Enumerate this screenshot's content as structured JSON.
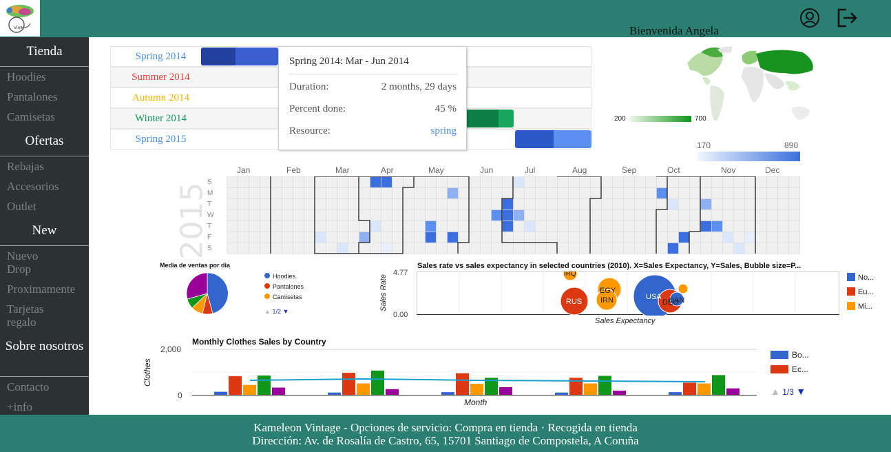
{
  "header": {
    "welcome": "Bienvenida Angela",
    "icons": [
      "user-icon",
      "logout-icon"
    ]
  },
  "sidebar": {
    "sections": [
      {
        "title": "Tienda",
        "items": [
          "Hoodies",
          "Pantalones",
          "Camisetas"
        ]
      },
      {
        "title": "Ofertas",
        "items": [
          "Rebajas",
          "Accesorios",
          "Outlet"
        ]
      },
      {
        "title": "New",
        "items": [
          "Nuevo Drop",
          "Proximamente",
          "Tarjetas regalo"
        ]
      },
      {
        "title": "Sobre nosotros",
        "items": [
          "Contacto",
          "+info"
        ]
      }
    ]
  },
  "timeline": {
    "rows": [
      {
        "label": "Spring 2014",
        "color": "#4285f4",
        "bar_color": "#3f5fd6",
        "bar_dark": "#2443a8",
        "percent_done": 45
      },
      {
        "label": "Summer 2014",
        "color": "#db4437",
        "bar_color": "#db4437",
        "bar_dark": "#a5271d",
        "percent_done": null
      },
      {
        "label": "Autumn 2014",
        "color": "#f4b400",
        "bar_color": "#f4b400",
        "bar_dark": "#c98d00",
        "percent_done": null
      },
      {
        "label": "Winter 2014",
        "color": "#0f9d58",
        "bar_color": "#14a85f",
        "bar_dark": "#0b7d44",
        "percent_done": 70
      },
      {
        "label": "Spring 2015",
        "color": "#4285f4",
        "bar_color": "#5b8ff0",
        "bar_dark": "#2c58c8",
        "percent_done": 50
      }
    ],
    "tooltip": {
      "title": "Spring 2014: Mar - Jun 2014",
      "duration_label": "Duration:",
      "duration_value": "2 months, 29 days",
      "percent_label": "Percent done:",
      "percent_value": "45 %",
      "resource_label": "Resource:",
      "resource_value": "spring"
    }
  },
  "geo": {
    "legend_min": "200",
    "legend_max": "700",
    "colors": {
      "low": "#f1f8ea",
      "high": "#109618"
    }
  },
  "calendar": {
    "year": "2015",
    "legend_min": "170",
    "legend_max": "890",
    "months": [
      "Jan",
      "Feb",
      "Mar",
      "Apr",
      "May",
      "Jun",
      "Jul",
      "Aug",
      "Sep",
      "Oct",
      "Nov",
      "Dec"
    ],
    "day_labels": [
      "S",
      "M",
      "T",
      "W",
      "T",
      "F",
      "S"
    ],
    "color_low": "#e8efff",
    "color_high": "#3a6fdd"
  },
  "pie": {
    "title": "Media de ventas por dia",
    "pager": "1/2",
    "colors": [
      "#3366cc",
      "#dc3912",
      "#ff9900",
      "#109618",
      "#990099"
    ],
    "legend": [
      "Hoodies",
      "Pantalones",
      "Camisetas"
    ]
  },
  "bubble": {
    "title": "Sales rate vs sales expectancy in selected countries (2010). X=Sales Expectancy, Y=Sales, Bubble size=P...",
    "xlabel": "Sales Expectancy",
    "ylabel": "Sales Rate",
    "y_ticks": [
      "4.77",
      "0.00"
    ],
    "legend": [
      "No...",
      "Eu...",
      "Mi..."
    ],
    "colors": [
      "#3366cc",
      "#dc3912",
      "#ff9900"
    ],
    "bubble_labels": [
      "IRQ",
      "RUS",
      "EGY",
      "IRN",
      "USA",
      "DEU",
      "CAN"
    ]
  },
  "combo": {
    "title": "Monthly Clothes Sales by Country",
    "xlabel": "Month",
    "ylabel": "Clothes",
    "y_ticks": [
      "2,000",
      "0"
    ],
    "legend": [
      "Bo...",
      "Ec..."
    ],
    "pager": "1/3",
    "colors": [
      "#3366cc",
      "#dc3912",
      "#ff9900",
      "#109618",
      "#990099"
    ],
    "line_color": "#1a9fd0"
  },
  "footer": {
    "line1": "Kameleon Vintage - Opciones de servicio: Compra en tienda · Recogida en tienda",
    "line2": "Dirección: Av. de Rosalía de Castro, 65, 15701 Santiago de Compostela, A Coruña"
  }
}
